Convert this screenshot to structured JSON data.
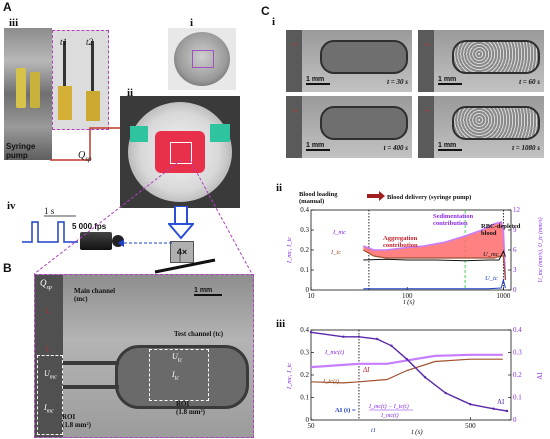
{
  "panels": {
    "A": "A",
    "B": "B",
    "C": "C",
    "A_sub": {
      "i": "i",
      "ii": "ii",
      "iii": "iii",
      "iv": "iv"
    },
    "C_sub": {
      "i": "i",
      "ii": "ii",
      "iii": "iii"
    }
  },
  "panelA": {
    "t1": "t1",
    "t2": "t2",
    "syringe_pump": "Syringe\npump",
    "q_sp": "Q",
    "q_sp_sub": "sp",
    "one_s": "1 s",
    "fps": "5 000 fps",
    "magnification": "4×"
  },
  "panelB": {
    "q_sp": "Q",
    "q_sp_sub": "sp",
    "main_channel": "Main channel\n(mc)",
    "test_channel": "Test channel (tc)",
    "scale": "1 mm",
    "u_mc": "U",
    "u_mc_sub": "mc",
    "i_mc": "I",
    "i_mc_sub": "mc",
    "u_tc": "U",
    "u_tc_sub": "tc",
    "i_tc": "I",
    "i_tc_sub": "tc",
    "roi_mc": "ROI\n(1.8 mm²)",
    "roi_tc": "ROI\n(1.8 mm²)"
  },
  "panelCi": {
    "scale": "1 mm",
    "times": [
      "t = 30 s",
      "t = 60 s",
      "t = 400 s",
      "t = 1080 s"
    ]
  },
  "panelCii": {
    "blood_loading": "Blood loading\n(manual)",
    "blood_delivery": "Blood delivery (syringe pump)",
    "sedimentation": "Sedimentation\ncontribution",
    "aggregation": "Aggregation\ncontribution",
    "rbc_depleted": "RBC-depleted\nblood",
    "ylabel_left": "I_mc, I_tc",
    "ylabel_right": "U_mc (mm/s), U_tc (mm/s)",
    "xlabel": "t (s)",
    "series_labels": {
      "I_mc": "I_mc",
      "I_tc": "I_tc",
      "U_mc": "U_mc",
      "U_tc": "U_tc"
    }
  },
  "panelCiii": {
    "ylabel_left": "I_mc, I_tc",
    "ylabel_right": "AI",
    "xlabel": "t (s)",
    "label_Imc": "I_mc(t)",
    "label_Itc": "I_tc(t)",
    "label_dI": "ΔI",
    "label_AI": "AI",
    "formula_left": "AI (t) =",
    "formula_num": "I_mc(t) − I_tc(t)",
    "formula_den": "I_mc(t)",
    "label_t1": "t1"
  },
  "colors": {
    "purple": "#8a2be2",
    "violet_light": "#c77dff",
    "red_fill": "#ff6b6b",
    "brown": "#a0522d",
    "green_dash": "#2ecc40",
    "blue": "#1e40c8",
    "dashed_frame": "#b040c0"
  },
  "chart_data": [
    {
      "id": "Cii",
      "type": "line",
      "x_scale": "log",
      "xlim": [
        10,
        1200
      ],
      "ylim_left": [
        0,
        0.4
      ],
      "ylim_right": [
        0,
        12
      ],
      "x_ticks": [
        10,
        100,
        1000
      ],
      "y_ticks_left": [
        0,
        0.1,
        0.2,
        0.3,
        0.4
      ],
      "y_ticks_right": [
        0,
        3,
        6,
        9,
        12
      ],
      "series": [
        {
          "name": "I_mc",
          "axis": "left",
          "x": [
            35,
            45,
            60,
            90,
            150,
            250,
            400,
            600,
            800,
            950,
            1000,
            1050
          ],
          "values": [
            0.22,
            0.2,
            0.2,
            0.21,
            0.22,
            0.24,
            0.27,
            0.3,
            0.33,
            0.34,
            0.3,
            0.05
          ]
        },
        {
          "name": "I_tc",
          "axis": "left",
          "x": [
            35,
            45,
            60,
            90,
            150,
            250,
            400,
            600,
            800,
            950,
            1000,
            1050
          ],
          "values": [
            0.2,
            0.17,
            0.16,
            0.16,
            0.16,
            0.16,
            0.16,
            0.16,
            0.16,
            0.17,
            0.17,
            0.05
          ]
        },
        {
          "name": "U_mc",
          "axis": "right",
          "x": [
            35,
            60,
            100,
            200,
            400,
            700,
            900,
            1000,
            1050
          ],
          "values": [
            4.5,
            4.6,
            4.5,
            4.5,
            4.4,
            4.5,
            4.5,
            5.8,
            5.0
          ]
        },
        {
          "name": "U_tc",
          "axis": "right",
          "x": [
            35,
            100,
            300,
            700,
            950,
            1000,
            1050
          ],
          "values": [
            0.2,
            0.2,
            0.2,
            0.2,
            0.3,
            1.5,
            0.3
          ]
        }
      ],
      "vlines": [
        {
          "x": 40,
          "style": "dotted-black"
        },
        {
          "x": 400,
          "style": "dashed-green"
        },
        {
          "x": 1000,
          "style": "dotted-black"
        }
      ]
    },
    {
      "id": "Ciii",
      "type": "line",
      "x_scale": "log",
      "xlim": [
        50,
        900
      ],
      "ylim_left": [
        0,
        0.4
      ],
      "ylim_right": [
        0,
        0.4
      ],
      "x_ticks": [
        50,
        500
      ],
      "y_ticks_left": [
        0,
        0.1,
        0.2,
        0.3,
        0.4
      ],
      "y_ticks_right": [
        0,
        0.1,
        0.2,
        0.3,
        0.4
      ],
      "series": [
        {
          "name": "I_mc(t)",
          "axis": "left",
          "x": [
            50,
            80,
            100,
            150,
            200,
            300,
            500,
            800
          ],
          "values": [
            0.235,
            0.245,
            0.25,
            0.25,
            0.265,
            0.285,
            0.29,
            0.29
          ]
        },
        {
          "name": "I_tc(t)",
          "axis": "left",
          "x": [
            50,
            80,
            100,
            150,
            200,
            300,
            500,
            800
          ],
          "values": [
            0.17,
            0.165,
            0.17,
            0.18,
            0.22,
            0.26,
            0.27,
            0.27
          ]
        },
        {
          "name": "AI",
          "axis": "right",
          "x": [
            50,
            80,
            100,
            130,
            160,
            200,
            260,
            350,
            500,
            700,
            850
          ],
          "values": [
            0.39,
            0.37,
            0.37,
            0.36,
            0.33,
            0.27,
            0.19,
            0.12,
            0.07,
            0.05,
            0.04
          ]
        }
      ],
      "vlines": [
        {
          "x": 100,
          "style": "dotted-black"
        }
      ]
    }
  ]
}
